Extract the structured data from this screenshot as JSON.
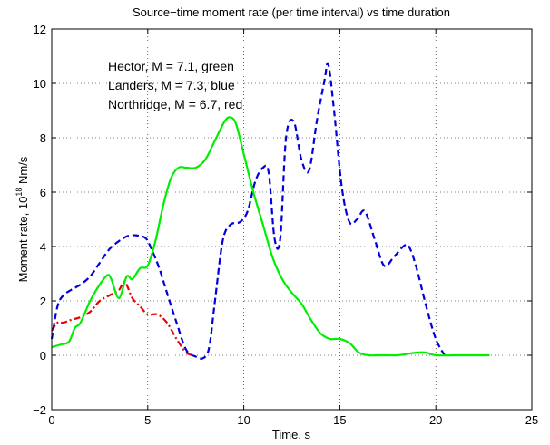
{
  "chart_data": {
    "type": "line",
    "title": "Source−time moment rate (per time interval) vs time duration",
    "xlabel": "Time, s",
    "ylabel_main": "Moment rate, 10",
    "ylabel_exp": "18",
    "ylabel_unit": " Nm/s",
    "xlim": [
      0,
      25
    ],
    "ylim": [
      -2,
      12
    ],
    "xticks": [
      0,
      5,
      10,
      15,
      20,
      25
    ],
    "yticks": [
      -2,
      0,
      2,
      4,
      6,
      8,
      10,
      12
    ],
    "xtick_labels": [
      "0",
      "5",
      "10",
      "15",
      "20",
      "25"
    ],
    "ytick_labels": [
      "−2",
      "0",
      "2",
      "4",
      "6",
      "8",
      "10",
      "12"
    ],
    "grid": true,
    "annotations": [
      "Hector, M = 7.1, green",
      "Landers, M = 7.3, blue",
      "Northridge, M = 6.7, red"
    ],
    "series": [
      {
        "color": "#00ee00",
        "style": "solid",
        "x": [
          0,
          0.5,
          0.9,
          1.2,
          1.5,
          2.0,
          2.5,
          2.9,
          3.1,
          3.5,
          3.9,
          4.2,
          4.6,
          5.0,
          5.4,
          5.8,
          6.2,
          6.6,
          7.0,
          7.5,
          8.0,
          8.5,
          9.0,
          9.3,
          9.6,
          10.0,
          10.5,
          11.0,
          11.5,
          12.0,
          12.5,
          13.0,
          13.5,
          14.0,
          14.5,
          15.0,
          15.5,
          16.0,
          16.5,
          17.0,
          17.5,
          18.0,
          18.5,
          19.0,
          19.5,
          20.0,
          21.0,
          22.0,
          22.8
        ],
        "y": [
          0.3,
          0.4,
          0.5,
          1.0,
          1.2,
          2.0,
          2.6,
          2.95,
          2.8,
          2.1,
          2.9,
          2.8,
          3.2,
          3.3,
          4.2,
          5.5,
          6.5,
          6.9,
          6.9,
          6.9,
          7.2,
          7.9,
          8.6,
          8.75,
          8.5,
          7.4,
          6.0,
          4.8,
          3.6,
          2.8,
          2.3,
          1.9,
          1.3,
          0.8,
          0.6,
          0.6,
          0.45,
          0.1,
          0.0,
          0.0,
          0.0,
          0.0,
          0.05,
          0.1,
          0.1,
          0.0,
          0.0,
          0.0,
          0.0
        ]
      },
      {
        "color": "#0000dd",
        "style": "dashed",
        "x": [
          0,
          0.3,
          0.6,
          1.0,
          1.5,
          2.0,
          2.5,
          3.0,
          3.5,
          4.0,
          4.5,
          4.9,
          5.2,
          5.6,
          6.0,
          6.5,
          7.0,
          7.5,
          7.9,
          8.2,
          8.5,
          8.9,
          9.3,
          9.8,
          10.2,
          10.6,
          11.0,
          11.3,
          11.6,
          11.9,
          12.2,
          12.6,
          13.0,
          13.4,
          13.8,
          14.2,
          14.4,
          14.7,
          15.1,
          15.5,
          15.9,
          16.3,
          16.8,
          17.3,
          17.8,
          18.3,
          18.6,
          19.0,
          19.5,
          20.0,
          20.5
        ],
        "y": [
          0.6,
          1.8,
          2.2,
          2.4,
          2.6,
          2.9,
          3.4,
          3.9,
          4.2,
          4.4,
          4.4,
          4.3,
          3.9,
          3.2,
          2.3,
          1.2,
          0.2,
          -0.05,
          -0.1,
          0.3,
          2.0,
          4.2,
          4.8,
          4.9,
          5.3,
          6.4,
          6.9,
          6.7,
          4.3,
          4.3,
          8.0,
          8.6,
          7.2,
          6.8,
          8.6,
          10.1,
          10.7,
          9.0,
          6.2,
          4.9,
          5.0,
          5.3,
          4.3,
          3.3,
          3.6,
          4.0,
          4.0,
          3.2,
          1.8,
          0.6,
          -0.05
        ]
      },
      {
        "color": "#ee0000",
        "style": "dashdot",
        "x": [
          0,
          0.3,
          0.6,
          1.0,
          1.5,
          2.0,
          2.5,
          3.0,
          3.5,
          3.8,
          4.2,
          4.6,
          5.0,
          5.5,
          6.0,
          6.5,
          7.0,
          7.4
        ],
        "y": [
          0.9,
          1.2,
          1.2,
          1.3,
          1.4,
          1.6,
          2.0,
          2.2,
          2.4,
          2.7,
          2.1,
          1.8,
          1.5,
          1.5,
          1.2,
          0.6,
          0.1,
          0.0
        ]
      }
    ]
  }
}
